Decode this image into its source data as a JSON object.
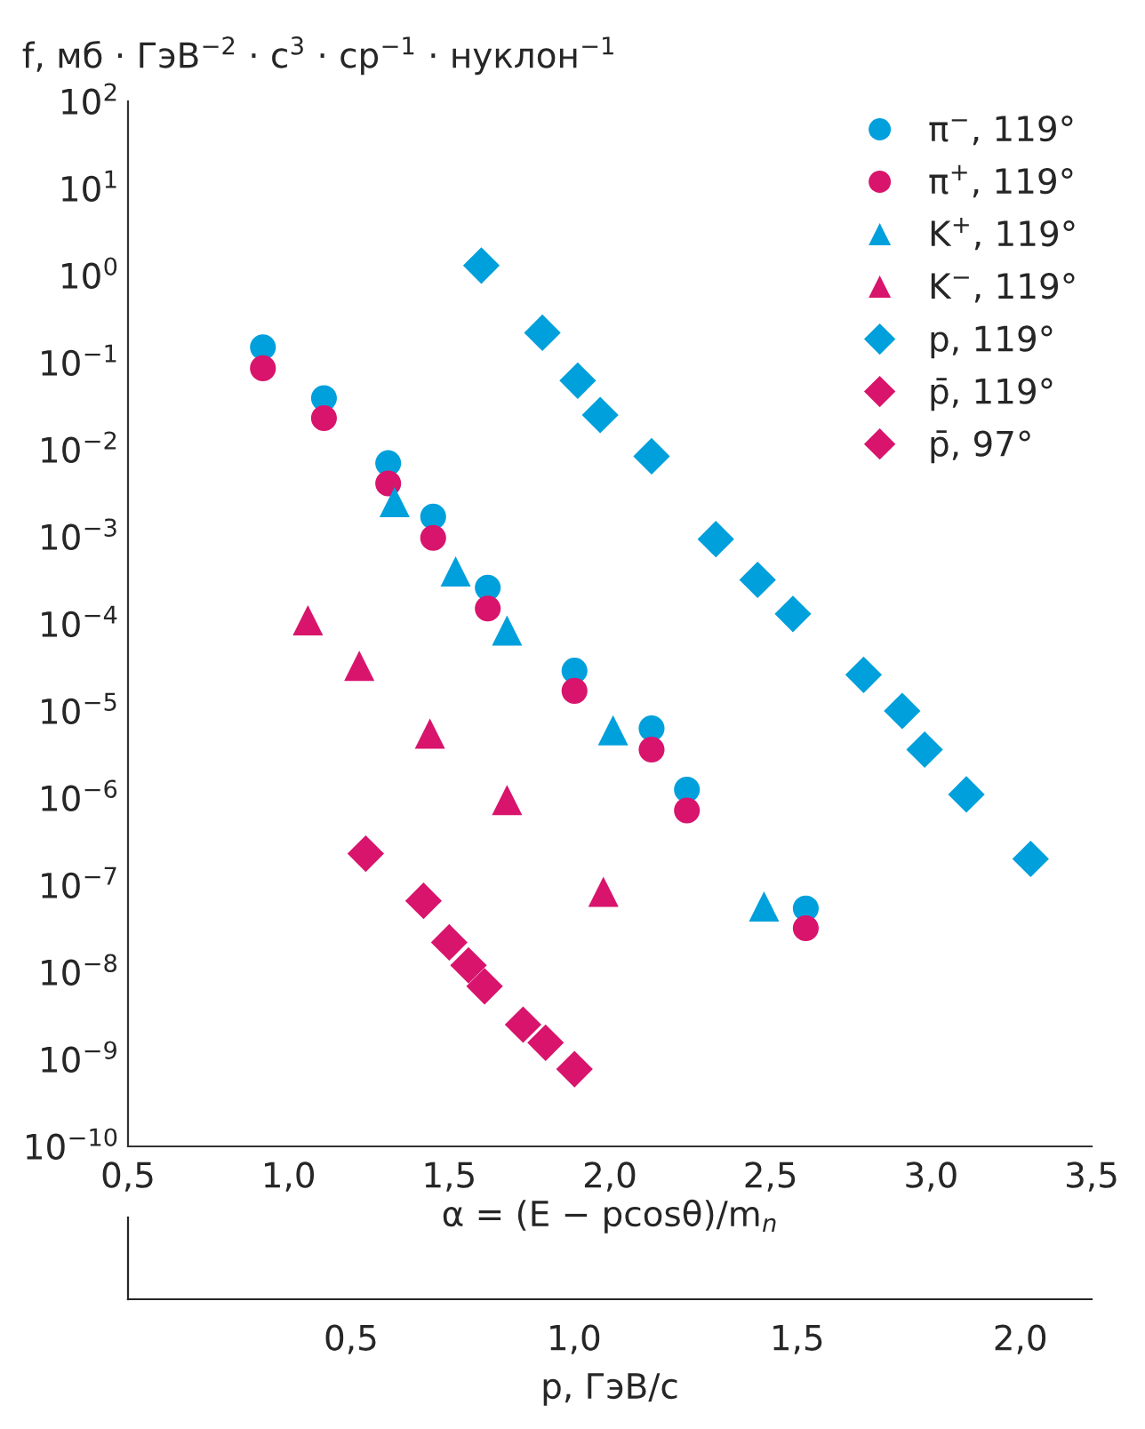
{
  "chart_data": {
    "type": "scatter",
    "ylabel": "f, мб · ГэВ$^{−2}$ · c$^{3}$ · ср$^{−1}$ · нуклон$^{−1}$",
    "xlabel": "α = (E − pcosθ)/m$_{n}$",
    "x2label": "p, ГэВ/c",
    "log": "y",
    "grid": false,
    "legend": "top right",
    "xlim": [
      0.5,
      3.5
    ],
    "xticks": [
      {
        "value": 0.5,
        "label": "0,5"
      },
      {
        "value": 1.0,
        "label": "1,0"
      },
      {
        "value": 1.5,
        "label": "1,5"
      },
      {
        "value": 2.0,
        "label": "2,0"
      },
      {
        "value": 2.5,
        "label": "2,5"
      },
      {
        "value": 3.0,
        "label": "3,0"
      },
      {
        "value": 3.5,
        "label": "3,5"
      }
    ],
    "x2lim": [
      0,
      2.16
    ],
    "x2ticks": [
      {
        "value": 0.5,
        "label": "0,5"
      },
      {
        "value": 1.0,
        "label": "1,0"
      },
      {
        "value": 1.5,
        "label": "1,5"
      },
      {
        "value": 2.0,
        "label": "2,0"
      }
    ],
    "ylim": [
      1e-10,
      100
    ],
    "yticks": [
      {
        "value": 100,
        "label": "10$^{2}$"
      },
      {
        "value": 10,
        "label": "10$^{1}$"
      },
      {
        "value": 1,
        "label": "10$^{0}$"
      },
      {
        "value": 0.1,
        "label": "10$^{−1}$"
      },
      {
        "value": 0.01,
        "label": "10$^{−2}$"
      },
      {
        "value": 0.001,
        "label": "10$^{−3}$"
      },
      {
        "value": 0.0001,
        "label": "10$^{−4}$"
      },
      {
        "value": 1e-05,
        "label": "10$^{−5}$"
      },
      {
        "value": 1e-06,
        "label": "10$^{−6}$"
      },
      {
        "value": 1e-07,
        "label": "10$^{−7}$"
      },
      {
        "value": 1e-08,
        "label": "10$^{−8}$"
      },
      {
        "value": 1e-09,
        "label": "10$^{−9}$"
      },
      {
        "value": 1e-10,
        "label": "10$^{−10}$"
      }
    ],
    "series": [
      {
        "name": "π$^{−}$, 119°",
        "color": "#00a0dc",
        "marker": "circle",
        "x": [
          0.92,
          1.11,
          1.31,
          1.45,
          1.62,
          1.89,
          2.13,
          2.24,
          2.61
        ],
        "values": [
          0.15,
          0.039,
          0.007,
          0.0017,
          0.00026,
          2.9e-05,
          6.3e-06,
          1.25e-06,
          5.4e-08
        ]
      },
      {
        "name": "π$^{+}$, 119°",
        "color": "#d8146c",
        "marker": "circle",
        "x": [
          0.92,
          1.11,
          1.31,
          1.45,
          1.62,
          1.89,
          2.13,
          2.24,
          2.61
        ],
        "values": [
          0.086,
          0.023,
          0.0041,
          0.00097,
          0.00015,
          1.7e-05,
          3.6e-06,
          7.2e-07,
          3.2e-08
        ]
      },
      {
        "name": "K$^{+}$, 119°",
        "color": "#00a0dc",
        "marker": "triangle",
        "x": [
          1.33,
          1.52,
          1.68,
          2.01,
          2.48
        ],
        "values": [
          0.0025,
          0.0004,
          8.4e-05,
          6e-06,
          5.7e-08
        ]
      },
      {
        "name": "K$^{−}$, 119°",
        "color": "#d8146c",
        "marker": "triangle",
        "x": [
          1.06,
          1.22,
          1.44,
          1.68,
          1.98
        ],
        "values": [
          0.00011,
          3.3e-05,
          5.5e-06,
          9.5e-07,
          8.4e-08
        ]
      },
      {
        "name": "p, 119°",
        "color": "#00a0dc",
        "marker": "diamond",
        "x": [
          1.6,
          1.79,
          1.9,
          1.97,
          2.13,
          2.33,
          2.46,
          2.57,
          2.79,
          2.91,
          2.98,
          3.11,
          3.31
        ],
        "values": [
          1.3,
          0.22,
          0.062,
          0.025,
          0.0084,
          0.00094,
          0.00032,
          0.00013,
          2.6e-05,
          1e-05,
          3.6e-06,
          1.1e-06,
          2e-07
        ]
      },
      {
        "name": "p̄, 119°",
        "color": "#d8146c",
        "marker": "diamond",
        "x": [
          1.5,
          1.61,
          1.8
        ],
        "values": [
          2.2e-08,
          6.9e-09,
          1.55e-09
        ]
      },
      {
        "name": "p̄, 97°",
        "color": "#d8146c",
        "marker": "diamond",
        "x": [
          1.24,
          1.42,
          1.56,
          1.73,
          1.89
        ],
        "values": [
          2.3e-07,
          6.6e-08,
          1.2e-08,
          2.5e-09,
          7.7e-10
        ]
      }
    ]
  }
}
